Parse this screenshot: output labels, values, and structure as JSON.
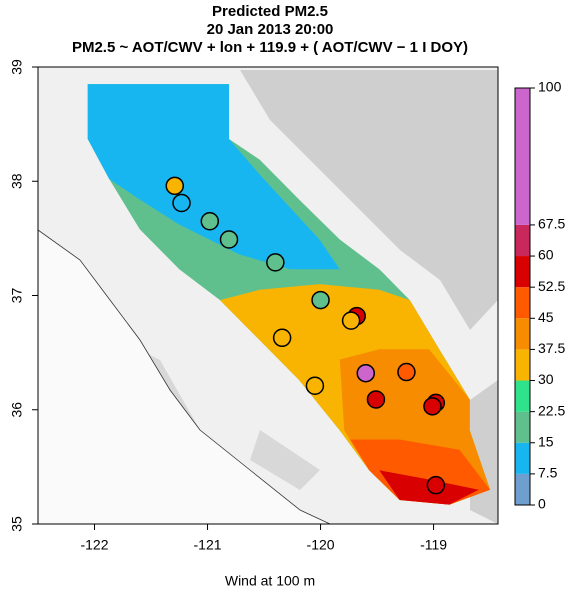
{
  "chart_data": {
    "type": "map",
    "title": "Predicted PM2.5",
    "subtitle": "20 Jan 2013 20:00",
    "formula": "PM2.5 ~ AOT/CWV + lon + 119.9 + ( AOT/CWV − 1 I DOY)",
    "x_label": "Wind at 100 m",
    "xlim": [
      -122.5,
      -118.43
    ],
    "ylim": [
      35,
      39
    ],
    "xticks": [
      -122,
      -121,
      -120,
      -119
    ],
    "yticks": [
      35,
      36,
      37,
      38,
      39
    ],
    "colorbar": {
      "breaks": [
        0,
        7.5,
        15,
        22.5,
        30,
        37.5,
        45,
        52.5,
        60,
        67.5,
        100
      ],
      "colors": [
        "#6f9fcf",
        "#18b6f0",
        "#5fc08e",
        "#2fe38c",
        "#f8b400",
        "#f88c00",
        "#ff5a00",
        "#d80000",
        "#c8285c",
        "#cc66cc"
      ]
    },
    "zones": [
      {
        "value": 20,
        "polygon": [
          [
            -122.06,
            38.85
          ],
          [
            -120.81,
            38.85
          ],
          [
            -120.81,
            38.37
          ],
          [
            -120.54,
            38.19
          ],
          [
            -120.19,
            37.84
          ],
          [
            -119.83,
            37.49
          ],
          [
            -119.48,
            37.23
          ],
          [
            -119.21,
            36.96
          ],
          [
            -118.95,
            36.53
          ],
          [
            -118.68,
            36.09
          ],
          [
            -118.68,
            35.82
          ],
          [
            -118.5,
            35.3
          ],
          [
            -118.86,
            35.17
          ],
          [
            -119.3,
            35.21
          ],
          [
            -119.57,
            35.47
          ],
          [
            -119.83,
            35.82
          ],
          [
            -120.19,
            36.26
          ],
          [
            -120.54,
            36.61
          ],
          [
            -120.89,
            36.96
          ],
          [
            -121.25,
            37.23
          ],
          [
            -121.6,
            37.58
          ],
          [
            -121.87,
            38.02
          ],
          [
            -122.06,
            38.37
          ]
        ]
      },
      {
        "value": 10,
        "polygon": [
          [
            -122.06,
            38.85
          ],
          [
            -120.81,
            38.85
          ],
          [
            -120.81,
            38.37
          ],
          [
            -120.54,
            38.06
          ],
          [
            -120.01,
            37.49
          ],
          [
            -119.83,
            37.23
          ],
          [
            -120.27,
            37.23
          ],
          [
            -120.72,
            37.36
          ],
          [
            -121.25,
            37.62
          ],
          [
            -121.6,
            37.84
          ],
          [
            -121.87,
            38.02
          ],
          [
            -122.06,
            38.37
          ]
        ]
      },
      {
        "value": 34,
        "polygon": [
          [
            -120.89,
            36.96
          ],
          [
            -120.54,
            37.05
          ],
          [
            -120.01,
            37.1
          ],
          [
            -119.48,
            37.05
          ],
          [
            -119.21,
            36.96
          ],
          [
            -118.95,
            36.53
          ],
          [
            -118.68,
            36.09
          ],
          [
            -118.68,
            35.82
          ],
          [
            -118.5,
            35.3
          ],
          [
            -118.86,
            35.17
          ],
          [
            -119.3,
            35.21
          ],
          [
            -119.57,
            35.47
          ],
          [
            -119.83,
            35.82
          ],
          [
            -120.19,
            36.26
          ],
          [
            -120.54,
            36.61
          ]
        ]
      },
      {
        "value": 42,
        "polygon": [
          [
            -119.83,
            36.44
          ],
          [
            -119.48,
            36.53
          ],
          [
            -119.04,
            36.53
          ],
          [
            -118.68,
            36.09
          ],
          [
            -118.68,
            35.82
          ],
          [
            -118.5,
            35.3
          ],
          [
            -118.86,
            35.17
          ],
          [
            -119.3,
            35.21
          ],
          [
            -119.57,
            35.47
          ],
          [
            -119.79,
            35.82
          ]
        ]
      },
      {
        "value": 50,
        "polygon": [
          [
            -119.74,
            35.74
          ],
          [
            -119.3,
            35.74
          ],
          [
            -118.77,
            35.65
          ],
          [
            -118.5,
            35.3
          ],
          [
            -118.86,
            35.17
          ],
          [
            -119.3,
            35.21
          ],
          [
            -119.57,
            35.47
          ]
        ]
      },
      {
        "value": 57,
        "polygon": [
          [
            -119.48,
            35.47
          ],
          [
            -119.04,
            35.39
          ],
          [
            -118.6,
            35.3
          ],
          [
            -118.86,
            35.17
          ],
          [
            -119.3,
            35.21
          ]
        ]
      }
    ],
    "monitors": {
      "lon": [
        -121.29,
        -121.23,
        -120.98,
        -120.81,
        -120.4,
        -120.0,
        -119.68,
        -119.73,
        -120.34,
        -120.05,
        -119.6,
        -119.24,
        -119.51,
        -118.98,
        -119.01,
        -118.98
      ],
      "lat": [
        37.96,
        37.81,
        37.65,
        37.49,
        37.29,
        36.96,
        36.82,
        36.78,
        36.63,
        36.21,
        36.32,
        36.33,
        36.09,
        36.06,
        36.03,
        35.34
      ],
      "values": [
        33,
        12,
        18,
        18,
        19,
        20,
        57,
        34,
        36,
        34,
        70,
        48,
        58,
        56,
        57,
        58
      ]
    }
  }
}
